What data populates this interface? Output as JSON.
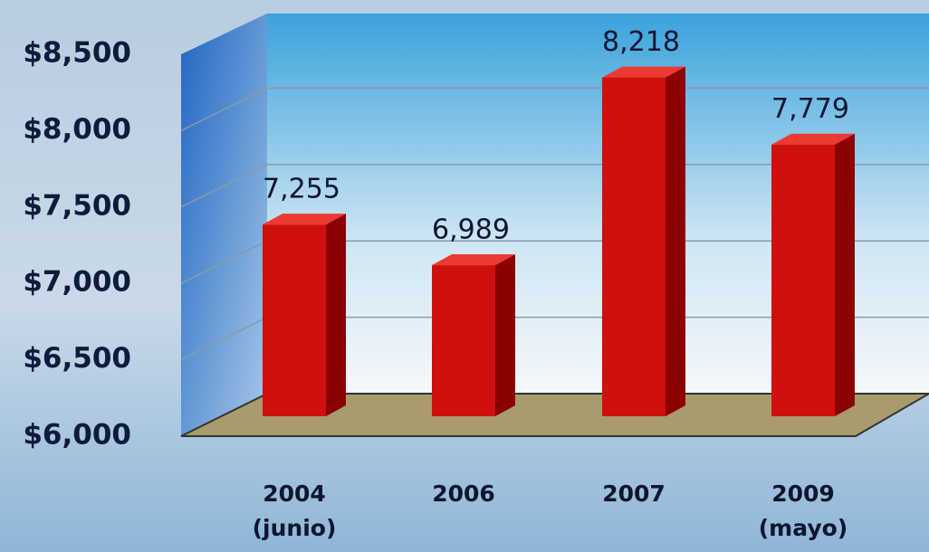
{
  "chart_data": {
    "type": "bar",
    "categories": [
      "2004\n(junio)",
      "2006",
      "2007",
      "2009\n(mayo)"
    ],
    "values": [
      7255,
      6989,
      8218,
      7779
    ],
    "value_labels": [
      "7,255",
      "6,989",
      "8,218",
      "7,779"
    ],
    "color": "#d0100e",
    "ylim": [
      6000,
      8500
    ],
    "yticks": [
      {
        "value": 6000,
        "label": "$6,000"
      },
      {
        "value": 6500,
        "label": "$6,500"
      },
      {
        "value": 7000,
        "label": "$7,000"
      },
      {
        "value": 7500,
        "label": "$7,500"
      },
      {
        "value": 8000,
        "label": "$8,000"
      },
      {
        "value": 8500,
        "label": "$8,500"
      }
    ],
    "grid": true
  }
}
